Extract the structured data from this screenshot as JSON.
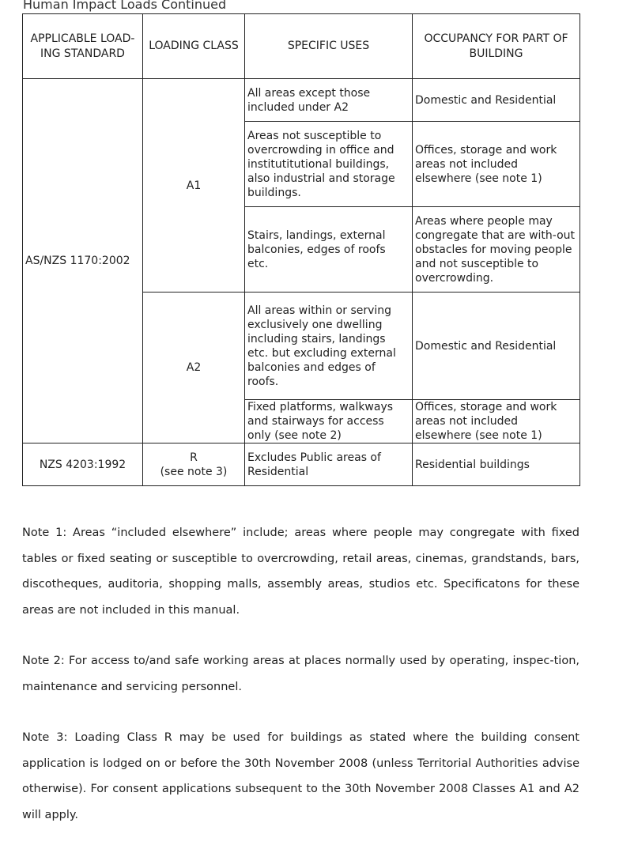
{
  "title": "Human Impact Loads Continued",
  "table": {
    "headers": [
      "APPLICABLE LOAD-ING STANDARD",
      "LOADING CLASS",
      "SPECIFIC USES",
      "OCCUPANCY FOR PART OF BUILDING"
    ],
    "standard_1": "AS/NZS 1170:2002",
    "class_a1": "A1",
    "class_a2": "A2",
    "rows": [
      {
        "uses": "All areas except those included under A2",
        "occupancy": "Domestic and Residential"
      },
      {
        "uses": "Areas not susceptible to overcrowding in office and instituti­tutional buildings, also industrial and storage buildings.",
        "occupancy": "Offices, storage and work areas not included elsewhere (see note 1)"
      },
      {
        "uses": "Stairs, landings, external balconies, edges of roofs etc.",
        "occupancy": "Areas where people may congregate that are with-out obstacles for moving people and not susceptible to overcrowding."
      },
      {
        "uses": "All areas within or serving exclusively one dwelling including stairs, landings etc. but excluding external balconies and edges of roofs.",
        "occupancy": "Domestic and Residential"
      },
      {
        "uses": "Fixed platforms, walkways and stairways for access only (see note 2)",
        "occupancy": "Offices, storage and work areas not included elsewhere (see note 1)"
      }
    ],
    "standard_2": "NZS 4203:1992",
    "class_r": "R",
    "class_r_note": "(see note 3)",
    "r_uses": "Excludes Public areas of Residential",
    "r_occupancy": "Residential buildings"
  },
  "notes": [
    "Note 1:  Areas “included elsewhere” include; areas where people may congregate with fixed tables or fixed seating or susceptible to overcrowding, retail areas, cinemas, grandstands, bars, discotheques, auditoria, shopping malls, assembly areas, studios etc. Specificatons for these areas are not included in this manual.",
    "Note 2:  For access to/and safe working areas at places normally used by operating, inspec-tion, maintenance and servicing personnel.",
    "Note 3:  Loading Class R may be used for buildings as stated where the building consent application is lodged on or before the 30th November 2008 (unless Territorial Authorities advise otherwise).  For consent applications subsequent to the 30th November 2008 Classes A1 and A2 will apply."
  ]
}
